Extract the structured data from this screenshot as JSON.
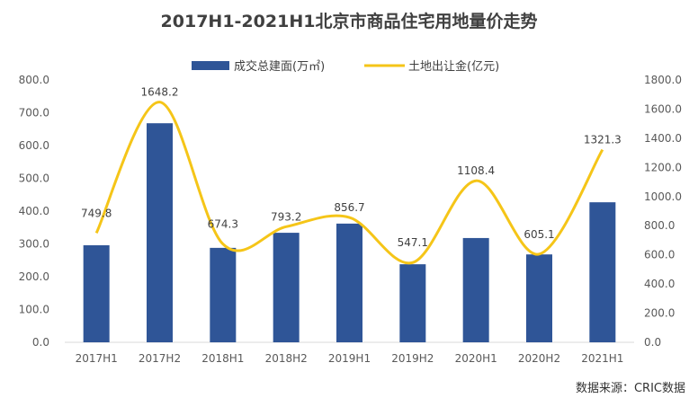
{
  "chart_data": {
    "type": "bar+line",
    "title": "2017H1-2021H1北京市商品住宅用地量价走势",
    "categories": [
      "2017H1",
      "2017H2",
      "2018H1",
      "2018H2",
      "2019H1",
      "2019H2",
      "2020H1",
      "2020H2",
      "2021H1"
    ],
    "series": [
      {
        "name": "成交总建面(万㎡)",
        "type": "bar",
        "axis": "left",
        "color": "#2F5597",
        "values": [
          296,
          668,
          288,
          334,
          362,
          238,
          318,
          268,
          427
        ]
      },
      {
        "name": "土地出让金(亿元)",
        "type": "line",
        "axis": "right",
        "color": "#F5C518",
        "smooth": true,
        "values": [
          749.8,
          1648.2,
          674.3,
          793.2,
          856.7,
          547.1,
          1108.4,
          605.1,
          1321.3
        ],
        "labels": [
          "749.8",
          "1648.2",
          "674.3",
          "793.2",
          "856.7",
          "547.1",
          "1108.4",
          "605.1",
          "1321.3"
        ]
      }
    ],
    "y_left": {
      "range": [
        0,
        800
      ],
      "ticks": [
        "0.0",
        "100.0",
        "200.0",
        "300.0",
        "400.0",
        "500.0",
        "600.0",
        "700.0",
        "800.0"
      ]
    },
    "y_right": {
      "range": [
        0,
        1800
      ],
      "ticks": [
        "0.0",
        "200.0",
        "400.0",
        "600.0",
        "800.0",
        "1000.0",
        "1200.0",
        "1400.0",
        "1600.0",
        "1800.0"
      ]
    },
    "grid": false,
    "legend": "top"
  },
  "source": "数据来源：CRIC数据"
}
